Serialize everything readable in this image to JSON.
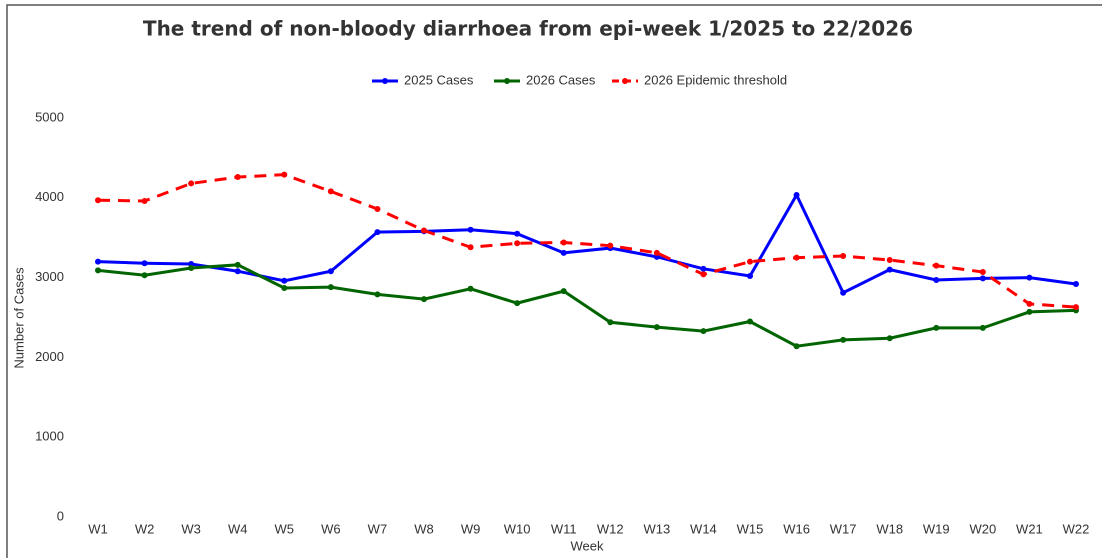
{
  "chart_data": {
    "type": "line",
    "title": "The trend of non-bloody diarrhoea from epi-week 1/2025 to 22/2026",
    "x_label": "Week",
    "y_label": "Number of Cases",
    "categories": [
      "W1",
      "W2",
      "W3",
      "W4",
      "W5",
      "W6",
      "W7",
      "W8",
      "W9",
      "W10",
      "W11",
      "W12",
      "W13",
      "W14",
      "W15",
      "W16",
      "W17",
      "W18",
      "W19",
      "W20",
      "W21",
      "W22"
    ],
    "series": [
      {
        "name": "2025 Cases",
        "color": "#0000ff",
        "linestyle": "solid",
        "values": [
          3200,
          3180,
          3170,
          3080,
          2960,
          3080,
          3570,
          3580,
          3600,
          3550,
          3310,
          3370,
          3260,
          3110,
          3020,
          4035,
          2810,
          3100,
          2970,
          2990,
          3000,
          2920
        ]
      },
      {
        "name": "2026 Cases",
        "color": "#006400",
        "linestyle": "solid",
        "values": [
          3090,
          3030,
          3120,
          3160,
          2870,
          2880,
          2790,
          2730,
          2860,
          2680,
          2830,
          2440,
          2380,
          2330,
          2450,
          2140,
          2220,
          2240,
          2370,
          2370,
          2570,
          2590
        ]
      },
      {
        "name": "2026 Epidemic threshold",
        "color": "#ff0000",
        "linestyle": "dashed",
        "values": [
          3970,
          3960,
          4180,
          4260,
          4290,
          4080,
          3860,
          3590,
          3380,
          3430,
          3440,
          3400,
          3310,
          3040,
          3200,
          3250,
          3270,
          3220,
          3150,
          3070,
          2670,
          2630
        ]
      }
    ],
    "ylim": [
      0,
      5000
    ],
    "yticks": [
      0,
      1000,
      2000,
      3000,
      4000,
      5000
    ],
    "grid": false,
    "legend": "top"
  }
}
